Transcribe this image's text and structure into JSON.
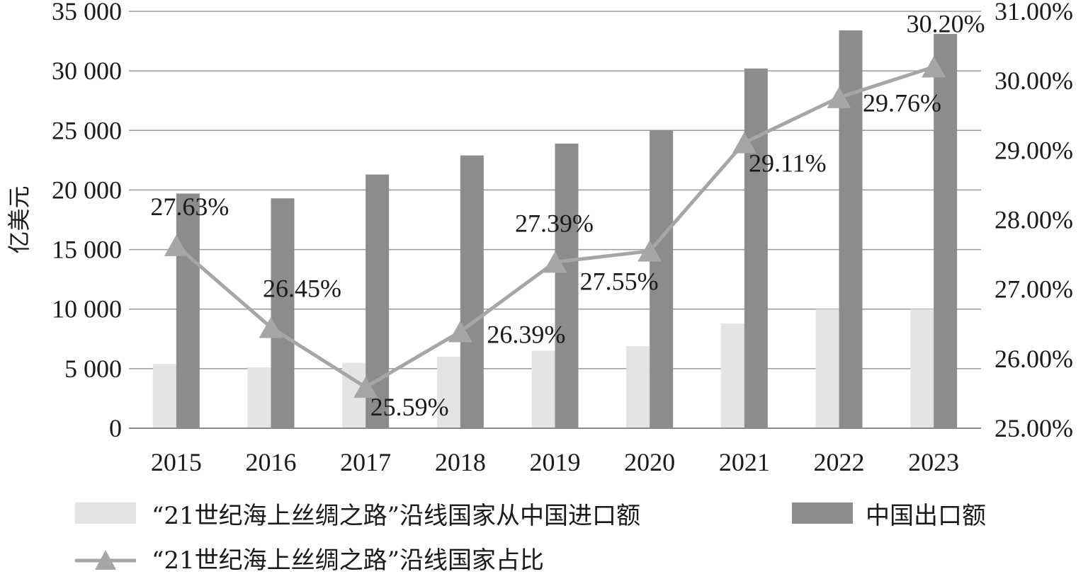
{
  "chart_data": {
    "type": "bar",
    "categories": [
      "2015",
      "2016",
      "2017",
      "2018",
      "2019",
      "2020",
      "2021",
      "2022",
      "2023"
    ],
    "series": [
      {
        "name": "“21世纪海上丝绸之路”沿线国家从中国进口额",
        "type": "bar",
        "axis": "left",
        "values": [
          5400,
          5100,
          5500,
          6000,
          6500,
          6900,
          8800,
          10000,
          10000
        ],
        "color": "#e4e4e4"
      },
      {
        "name": "中国出口额",
        "type": "bar",
        "axis": "left",
        "values": [
          19700,
          19300,
          21300,
          22900,
          23900,
          25000,
          30200,
          33400,
          33100
        ],
        "color": "#8c8c8c"
      },
      {
        "name": "“21世纪海上丝绸之路”沿线国家占比",
        "type": "line",
        "marker": "triangle",
        "axis": "right",
        "values": [
          27.63,
          26.45,
          25.59,
          26.39,
          27.39,
          27.55,
          29.11,
          29.76,
          30.2
        ],
        "data_labels": [
          "27.63%",
          "26.45%",
          "25.59%",
          "26.39%",
          "27.39%",
          "27.55%",
          "29.11%",
          "29.76%",
          "30.20%"
        ],
        "color": "#a6a6a6"
      }
    ],
    "ylabel": "亿美元",
    "xlabel": "",
    "ylim": [
      0,
      35000
    ],
    "y_ticks": [
      "0",
      "5 000",
      "10 000",
      "15 000",
      "20 000",
      "25 000",
      "30 000",
      "35 000"
    ],
    "y2lim": [
      25,
      31
    ],
    "y2_ticks": [
      "25.00%",
      "26.00%",
      "27.00%",
      "28.00%",
      "29.00%",
      "30.00%",
      "31.00%"
    ],
    "grid": true,
    "legend_position": "bottom"
  }
}
